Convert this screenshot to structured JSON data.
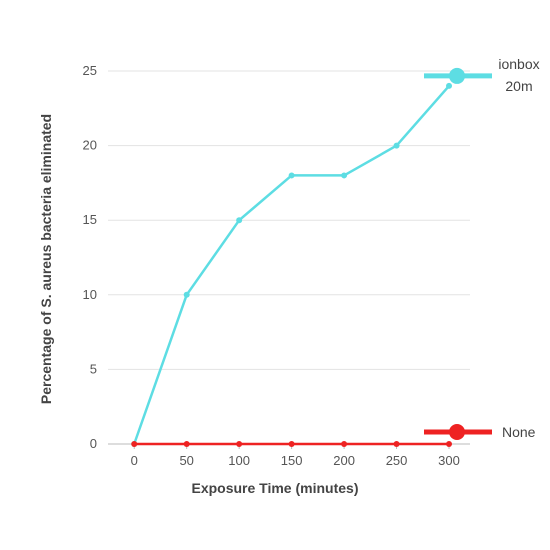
{
  "chart_data": {
    "type": "line",
    "xlabel": "Exposure Time (minutes)",
    "ylabel": "Percentage of S. aureus bacteria eliminated",
    "x": [
      0,
      50,
      100,
      150,
      200,
      250,
      300
    ],
    "xlim": [
      -25,
      320
    ],
    "ylim": [
      0,
      25
    ],
    "xticks": [
      0,
      50,
      100,
      150,
      200,
      250,
      300
    ],
    "yticks": [
      0,
      5,
      10,
      15,
      20,
      25
    ],
    "grid": "horizontal",
    "legend_position": "right, inline at series end",
    "series": [
      {
        "name": "ionbox 20m",
        "name_lines": [
          "ionbox",
          "20m"
        ],
        "color": "#5ddde3",
        "values": [
          0,
          10,
          15,
          18,
          18,
          20,
          24
        ]
      },
      {
        "name": "None",
        "name_lines": [
          "None"
        ],
        "color": "#ee2222",
        "values": [
          0,
          0,
          0,
          0,
          0,
          0,
          0
        ]
      }
    ]
  }
}
